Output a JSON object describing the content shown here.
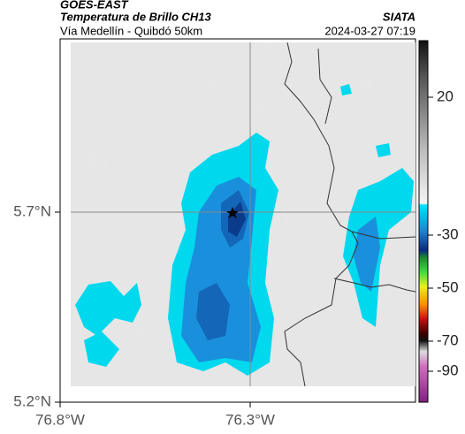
{
  "header": {
    "satellite": "GOES-EAST",
    "product": "Temperatura de Brillo CH13",
    "agency": "SIATA",
    "route": "Vía Medellín - Quibdó 50km",
    "timestamp": "2024-03-27 07:19"
  },
  "axes": {
    "lat_ticks": [
      "5.7°N",
      "5.2°N"
    ],
    "lon_ticks": [
      "76.8°W",
      "76.3°W"
    ]
  },
  "colorbar": {
    "ticks": [
      "20",
      "-30",
      "-50",
      "-70",
      "-90"
    ]
  }
}
